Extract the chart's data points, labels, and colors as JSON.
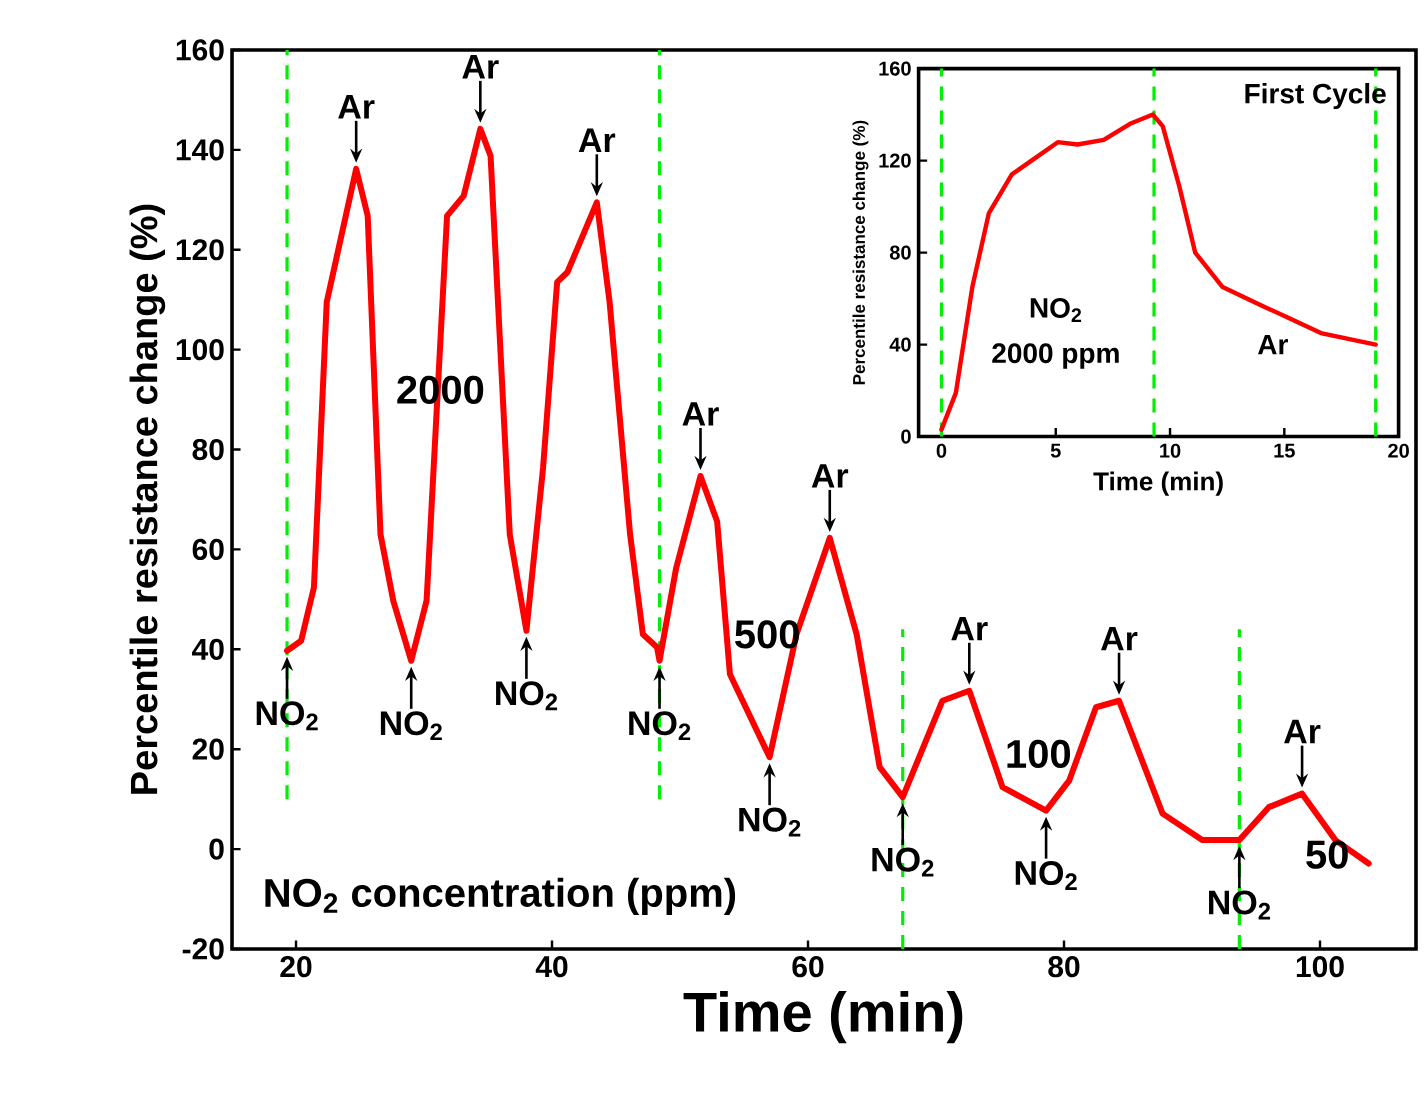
{
  "chart_data": [
    {
      "type": "line",
      "xlabel": "Time (min)",
      "ylabel": "Percentile resistance change (%)",
      "xlim": [
        15,
        107.5
      ],
      "ylim": [
        -20,
        160
      ],
      "xticks": [
        20,
        40,
        60,
        80,
        100
      ],
      "yticks": [
        -20,
        0,
        20,
        40,
        60,
        80,
        100,
        120,
        140,
        160
      ],
      "marker": "none",
      "line_style": "solid",
      "series": [
        {
          "color": "#ff0000",
          "x": [
            19.3,
            20.4,
            21.4,
            22.4,
            23.2,
            24.7,
            25.6,
            26.6,
            27.6,
            29.0,
            30.2,
            31.8,
            33.1,
            34.4,
            35.2,
            36.7,
            38.0,
            39.3,
            40.4,
            41.2,
            43.5,
            44.5,
            46.1,
            47.1,
            48.2,
            48.4,
            49.7,
            51.6,
            52.9,
            53.9,
            57.0,
            59.1,
            61.7,
            63.8,
            65.6,
            67.4,
            70.5,
            72.6,
            75.2,
            78.6,
            80.4,
            82.5,
            84.3,
            87.7,
            90.8,
            93.7,
            96.0,
            98.6,
            101.2,
            103.8
          ],
          "values": [
            39.7,
            41.7,
            52.4,
            109.5,
            118.8,
            136.2,
            126.8,
            63,
            49.7,
            37.7,
            49.7,
            126.8,
            130.8,
            144.2,
            138.8,
            63,
            43.7,
            76.3,
            113.5,
            115.5,
            129.5,
            109.5,
            63,
            43,
            40.4,
            37.7,
            56.3,
            74.7,
            65.6,
            35,
            18.4,
            43,
            62.3,
            43,
            16.4,
            10.4,
            29.7,
            31.7,
            12.4,
            7.7,
            13.7,
            28.4,
            29.7,
            7.1,
            1.8,
            1.8,
            8.4,
            11.1,
            1.8,
            -2.9
          ]
        }
      ],
      "ref_lines": [
        {
          "axis": "x",
          "value": 19.3,
          "color": "#00ee00",
          "line_style": "dashed"
        },
        {
          "axis": "x",
          "value": 48.4,
          "color": "#00ee00",
          "line_style": "dashed"
        },
        {
          "axis": "x",
          "value": 67.4,
          "color": "#00ee00",
          "line_style": "dashed"
        },
        {
          "axis": "x",
          "value": 93.7,
          "color": "#00ee00",
          "line_style": "dashed"
        }
      ],
      "annotations": [
        {
          "text": "Ar",
          "x": 24.7,
          "y": 136.2
        },
        {
          "text": "Ar",
          "x": 34.4,
          "y": 144.2
        },
        {
          "text": "Ar",
          "x": 43.5,
          "y": 129.5
        },
        {
          "text": "Ar",
          "x": 51.6,
          "y": 74.7
        },
        {
          "text": "Ar",
          "x": 61.7,
          "y": 62.3
        },
        {
          "text": "Ar",
          "x": 72.6,
          "y": 31.7
        },
        {
          "text": "Ar",
          "x": 84.3,
          "y": 29.7
        },
        {
          "text": "Ar",
          "x": 98.6,
          "y": 11.1
        },
        {
          "text": "NO$_{2}$",
          "x": 19.3,
          "y": 39.7
        },
        {
          "text": "NO$_{2}$",
          "x": 29.0,
          "y": 37.7
        },
        {
          "text": "NO$_{2}$",
          "x": 38.0,
          "y": 43.7
        },
        {
          "text": "NO$_{2}$",
          "x": 48.4,
          "y": 37.7
        },
        {
          "text": "NO$_{2}$",
          "x": 57.0,
          "y": 18.4
        },
        {
          "text": "NO$_{2}$",
          "x": 67.4,
          "y": 10.4
        },
        {
          "text": "NO$_{2}$",
          "x": 78.6,
          "y": 7.7
        },
        {
          "text": "NO$_{2}$",
          "x": 93.7,
          "y": 1.8
        },
        "2000",
        "500",
        "100",
        "50",
        "NO$_{2}$ concentration (ppm)"
      ]
    },
    {
      "type": "line",
      "title": "First Cycle",
      "xlabel": "Time (min)",
      "ylabel": "Percentile resistance change (%)",
      "xlim": [
        -1,
        20
      ],
      "ylim": [
        0,
        160
      ],
      "xticks": [
        0,
        5,
        10,
        15,
        20
      ],
      "yticks": [
        0,
        40,
        80,
        120,
        160
      ],
      "marker": "none",
      "line_style": "solid",
      "series": [
        {
          "color": "#ff0000",
          "x": [
            0,
            0.63,
            1.35,
            2.07,
            3.08,
            3.94,
            5.09,
            5.95,
            7.1,
            8.25,
            9.25,
            9.68,
            10.4,
            11.1,
            12.3,
            14.0,
            15.1,
            16.6,
            19.0
          ],
          "values": [
            3,
            19,
            65,
            97,
            114,
            120,
            128,
            127,
            129,
            136,
            140,
            135,
            109,
            80,
            65,
            57,
            52,
            45,
            40
          ]
        }
      ],
      "ref_lines": [
        {
          "axis": "x",
          "value": 0,
          "color": "#00ee00",
          "line_style": "dashed"
        },
        {
          "axis": "x",
          "value": 9.3,
          "color": "#00ee00",
          "line_style": "dashed"
        },
        {
          "axis": "x",
          "value": 19.0,
          "color": "#00ee00",
          "line_style": "dashed"
        }
      ],
      "annotations": [
        "NO$_{2}$",
        "2000 ppm",
        "Ar"
      ]
    }
  ]
}
